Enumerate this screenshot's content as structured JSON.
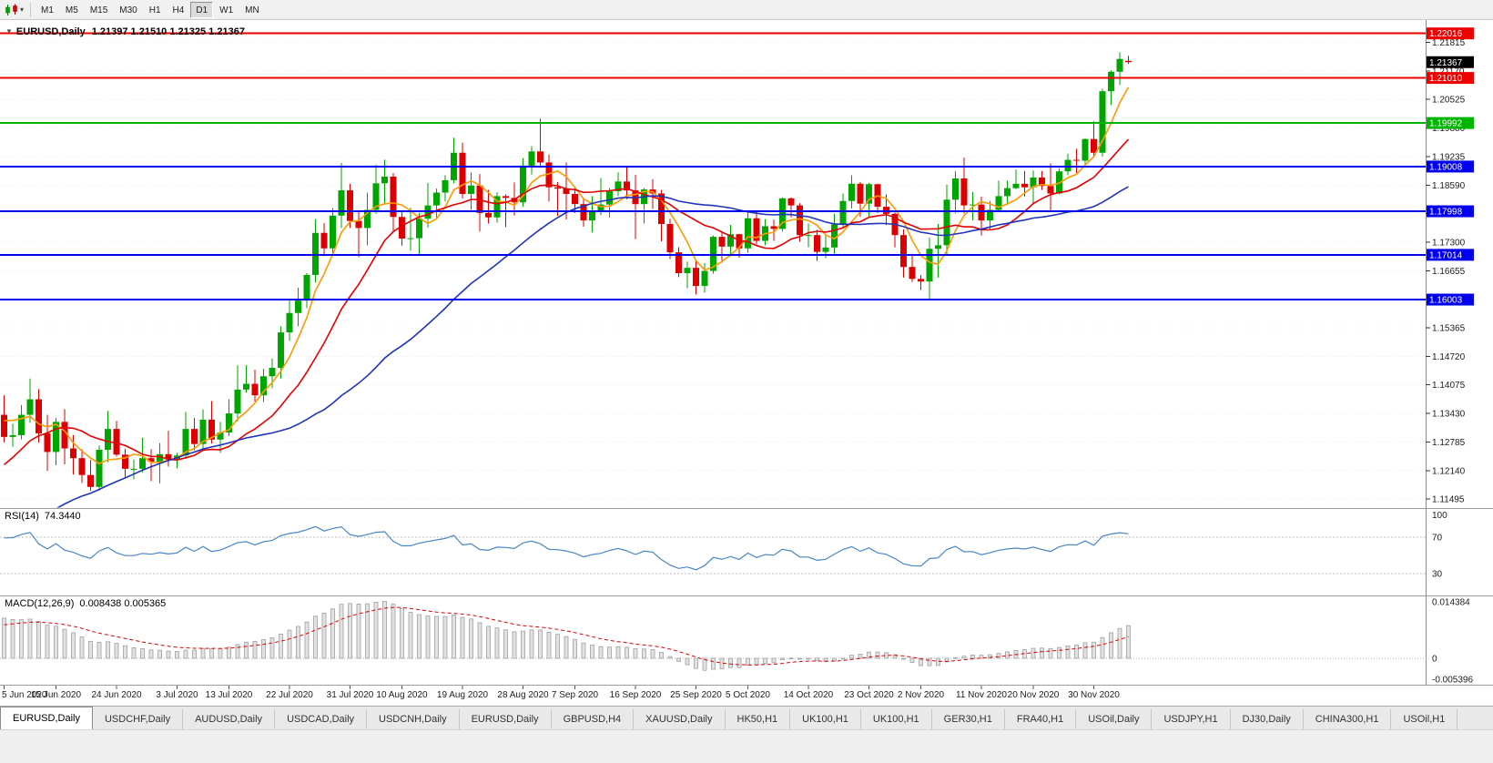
{
  "toolbar": {
    "dropdown_caret": "▾",
    "timeframes": [
      "M1",
      "M5",
      "M15",
      "M30",
      "H1",
      "H4",
      "D1",
      "W1",
      "MN"
    ],
    "active_timeframe": "D1"
  },
  "chart": {
    "collapse_arrow": "▼",
    "symbol": "EURUSD,Daily",
    "quote_ohlc": "1.21397 1.21510 1.21325 1.21367",
    "current_price": "1.21367",
    "up_color": "#00a600",
    "down_color": "#dd0000",
    "price_axis_ticks": [
      1.21815,
      1.2117,
      1.20525,
      1.1988,
      1.19235,
      1.1859,
      1.17945,
      1.173,
      1.16655,
      1.1601,
      1.15365,
      1.1472,
      1.14075,
      1.1343,
      1.12785,
      1.1214,
      1.11495
    ],
    "hlines": [
      {
        "price": 1.22016,
        "label": "1.22016",
        "color": "#ee0000"
      },
      {
        "price": 1.2101,
        "label": "1.21010",
        "color": "#ee0000"
      },
      {
        "price": 1.19992,
        "label": "1.19992",
        "color": "#00b400"
      },
      {
        "price": 1.19008,
        "label": "1.19008",
        "color": "#0000ee"
      },
      {
        "price": 1.17998,
        "label": "1.17998",
        "color": "#0000ee"
      },
      {
        "price": 1.17014,
        "label": "1.17014",
        "color": "#0000ee"
      },
      {
        "price": 1.16003,
        "label": "1.16003",
        "color": "#0000ee"
      }
    ],
    "date_labels": [
      {
        "text": "5 Jun 2020",
        "bar": 0
      },
      {
        "text": "15 Jun 2020",
        "bar": 6
      },
      {
        "text": "24 Jun 2020",
        "bar": 13
      },
      {
        "text": "3 Jul 2020",
        "bar": 20
      },
      {
        "text": "13 Jul 2020",
        "bar": 26
      },
      {
        "text": "22 Jul 2020",
        "bar": 33
      },
      {
        "text": "31 Jul 2020",
        "bar": 40
      },
      {
        "text": "10 Aug 2020",
        "bar": 46
      },
      {
        "text": "19 Aug 2020",
        "bar": 53
      },
      {
        "text": "28 Aug 2020",
        "bar": 60
      },
      {
        "text": "7 Sep 2020",
        "bar": 66
      },
      {
        "text": "16 Sep 2020",
        "bar": 73
      },
      {
        "text": "25 Sep 2020",
        "bar": 80
      },
      {
        "text": "5 Oct 2020",
        "bar": 86
      },
      {
        "text": "14 Oct 2020",
        "bar": 93
      },
      {
        "text": "23 Oct 2020",
        "bar": 100
      },
      {
        "text": "2 Nov 2020",
        "bar": 106
      },
      {
        "text": "11 Nov 2020",
        "bar": 113
      },
      {
        "text": "20 Nov 2020",
        "bar": 119
      },
      {
        "text": "30 Nov 2020",
        "bar": 126
      }
    ],
    "moving_averages": [
      {
        "period": 5,
        "color": "#ff9900"
      },
      {
        "period": 13,
        "color": "#e60000"
      },
      {
        "period": 34,
        "color": "#2233bb"
      }
    ],
    "ma_warmup_closes": [
      1.095,
      1.092,
      1.089,
      1.087,
      1.085,
      1.083,
      1.082,
      1.0845,
      1.086,
      1.088,
      1.0895,
      1.091,
      1.089,
      1.087,
      1.0855,
      1.084,
      1.086,
      1.0885,
      1.09,
      1.0915,
      1.093,
      1.095,
      1.097,
      1.099,
      1.0965,
      1.094,
      1.092,
      1.0945,
      1.097,
      1.0995,
      1.1015,
      1.104,
      1.106,
      1.108,
      1.11,
      1.1125,
      1.115,
      1.1175,
      1.12,
      1.123,
      1.126,
      1.129,
      1.132,
      1.135,
      1.1383
    ],
    "candles": [
      [
        1.134,
        1.1384,
        1.1278,
        1.129
      ],
      [
        1.129,
        1.132,
        1.1268,
        1.1294
      ],
      [
        1.1294,
        1.1362,
        1.1284,
        1.134
      ],
      [
        1.134,
        1.1422,
        1.1322,
        1.1375
      ],
      [
        1.1375,
        1.1398,
        1.1277,
        1.1298
      ],
      [
        1.1298,
        1.134,
        1.1213,
        1.1256
      ],
      [
        1.1256,
        1.1333,
        1.1226,
        1.1324
      ],
      [
        1.1324,
        1.1353,
        1.1228,
        1.1264
      ],
      [
        1.1264,
        1.1294,
        1.1205,
        1.1242
      ],
      [
        1.1242,
        1.1262,
        1.1186,
        1.1204
      ],
      [
        1.1204,
        1.1238,
        1.1168,
        1.1177
      ],
      [
        1.1177,
        1.1271,
        1.1168,
        1.1261
      ],
      [
        1.1261,
        1.1349,
        1.1233,
        1.1308
      ],
      [
        1.1308,
        1.1326,
        1.1246,
        1.125
      ],
      [
        1.125,
        1.1263,
        1.1199,
        1.1218
      ],
      [
        1.1218,
        1.1239,
        1.1194,
        1.1218
      ],
      [
        1.1218,
        1.1288,
        1.121,
        1.1242
      ],
      [
        1.1242,
        1.1262,
        1.119,
        1.1234
      ],
      [
        1.1234,
        1.1276,
        1.1185,
        1.1251
      ],
      [
        1.1251,
        1.1304,
        1.1223,
        1.1239
      ],
      [
        1.1239,
        1.1254,
        1.1219,
        1.1248
      ],
      [
        1.1248,
        1.1346,
        1.1241,
        1.1308
      ],
      [
        1.1308,
        1.1333,
        1.126,
        1.1274
      ],
      [
        1.1274,
        1.1352,
        1.1263,
        1.1329
      ],
      [
        1.1329,
        1.1371,
        1.1275,
        1.1284
      ],
      [
        1.1284,
        1.1324,
        1.1254,
        1.13
      ],
      [
        1.13,
        1.1375,
        1.1292,
        1.1343
      ],
      [
        1.1343,
        1.1452,
        1.1325,
        1.1397
      ],
      [
        1.1397,
        1.1452,
        1.139,
        1.141
      ],
      [
        1.141,
        1.1442,
        1.137,
        1.1384
      ],
      [
        1.1384,
        1.1444,
        1.1369,
        1.1427
      ],
      [
        1.1427,
        1.1467,
        1.14,
        1.1446
      ],
      [
        1.1446,
        1.154,
        1.1422,
        1.1526
      ],
      [
        1.1526,
        1.1601,
        1.1507,
        1.157
      ],
      [
        1.157,
        1.1627,
        1.154,
        1.1598
      ],
      [
        1.1598,
        1.166,
        1.1581,
        1.1656
      ],
      [
        1.1656,
        1.1782,
        1.1639,
        1.1751
      ],
      [
        1.1751,
        1.1773,
        1.17,
        1.1716
      ],
      [
        1.1716,
        1.1807,
        1.1702,
        1.179
      ],
      [
        1.179,
        1.1909,
        1.1762,
        1.1847
      ],
      [
        1.1847,
        1.1862,
        1.1762,
        1.1778
      ],
      [
        1.1778,
        1.1798,
        1.1696,
        1.1762
      ],
      [
        1.1762,
        1.1842,
        1.1723,
        1.1803
      ],
      [
        1.1803,
        1.1905,
        1.1794,
        1.1863
      ],
      [
        1.1863,
        1.1916,
        1.1817,
        1.1878
      ],
      [
        1.1878,
        1.1886,
        1.1754,
        1.1787
      ],
      [
        1.1787,
        1.1798,
        1.1722,
        1.1738
      ],
      [
        1.1738,
        1.1808,
        1.1711,
        1.1739
      ],
      [
        1.1739,
        1.1796,
        1.1701,
        1.1783
      ],
      [
        1.1783,
        1.1864,
        1.1763,
        1.1813
      ],
      [
        1.1813,
        1.1851,
        1.1782,
        1.1842
      ],
      [
        1.1842,
        1.1881,
        1.1822,
        1.187
      ],
      [
        1.187,
        1.1966,
        1.1863,
        1.1932
      ],
      [
        1.1932,
        1.1955,
        1.1829,
        1.1839
      ],
      [
        1.1839,
        1.1888,
        1.1803,
        1.1858
      ],
      [
        1.1858,
        1.1884,
        1.1754,
        1.1796
      ],
      [
        1.1796,
        1.1848,
        1.1772,
        1.1786
      ],
      [
        1.1786,
        1.1843,
        1.1774,
        1.1834
      ],
      [
        1.1834,
        1.1838,
        1.1764,
        1.183
      ],
      [
        1.183,
        1.1865,
        1.179,
        1.182
      ],
      [
        1.182,
        1.192,
        1.181,
        1.1903
      ],
      [
        1.1903,
        1.1947,
        1.1883,
        1.1935
      ],
      [
        1.1935,
        1.2009,
        1.1898,
        1.191
      ],
      [
        1.191,
        1.1928,
        1.1822,
        1.1854
      ],
      [
        1.1854,
        1.1866,
        1.1789,
        1.1851
      ],
      [
        1.1851,
        1.191,
        1.1781,
        1.1839
      ],
      [
        1.1839,
        1.1853,
        1.1796,
        1.1816
      ],
      [
        1.1816,
        1.1827,
        1.1765,
        1.1779
      ],
      [
        1.1779,
        1.1834,
        1.1752,
        1.1802
      ],
      [
        1.1802,
        1.1875,
        1.1791,
        1.1815
      ],
      [
        1.1815,
        1.1852,
        1.1786,
        1.1845
      ],
      [
        1.1845,
        1.1888,
        1.1834,
        1.1867
      ],
      [
        1.1867,
        1.19,
        1.1827,
        1.1847
      ],
      [
        1.1847,
        1.1882,
        1.1737,
        1.1816
      ],
      [
        1.1816,
        1.1852,
        1.1772,
        1.1849
      ],
      [
        1.1849,
        1.1872,
        1.1805,
        1.184
      ],
      [
        1.184,
        1.1848,
        1.1732,
        1.1771
      ],
      [
        1.1771,
        1.1783,
        1.1692,
        1.1707
      ],
      [
        1.1707,
        1.1719,
        1.1651,
        1.166
      ],
      [
        1.166,
        1.1686,
        1.1626,
        1.1672
      ],
      [
        1.1672,
        1.1687,
        1.1612,
        1.1631
      ],
      [
        1.1631,
        1.1683,
        1.1616,
        1.1665
      ],
      [
        1.1665,
        1.1745,
        1.1659,
        1.1742
      ],
      [
        1.1742,
        1.1755,
        1.1684,
        1.172
      ],
      [
        1.172,
        1.1769,
        1.1698,
        1.1748
      ],
      [
        1.1748,
        1.1749,
        1.1695,
        1.1716
      ],
      [
        1.1716,
        1.1798,
        1.1706,
        1.1784
      ],
      [
        1.1784,
        1.1799,
        1.1725,
        1.1733
      ],
      [
        1.1733,
        1.1782,
        1.1723,
        1.1766
      ],
      [
        1.1766,
        1.1781,
        1.1733,
        1.176
      ],
      [
        1.176,
        1.1831,
        1.1754,
        1.1829
      ],
      [
        1.1829,
        1.1831,
        1.1786,
        1.1813
      ],
      [
        1.1813,
        1.1818,
        1.1731,
        1.1746
      ],
      [
        1.1746,
        1.1772,
        1.1719,
        1.1746
      ],
      [
        1.1746,
        1.1758,
        1.1688,
        1.1708
      ],
      [
        1.1708,
        1.1746,
        1.1694,
        1.1718
      ],
      [
        1.1718,
        1.1794,
        1.1704,
        1.177
      ],
      [
        1.177,
        1.184,
        1.176,
        1.1823
      ],
      [
        1.1823,
        1.1881,
        1.1806,
        1.1862
      ],
      [
        1.1862,
        1.1866,
        1.1787,
        1.1817
      ],
      [
        1.1817,
        1.1864,
        1.1786,
        1.1861
      ],
      [
        1.1861,
        1.1862,
        1.1796,
        1.181
      ],
      [
        1.181,
        1.1838,
        1.1769,
        1.1794
      ],
      [
        1.1794,
        1.1797,
        1.1718,
        1.1746
      ],
      [
        1.1746,
        1.1759,
        1.165,
        1.1674
      ],
      [
        1.1674,
        1.1704,
        1.164,
        1.1647
      ],
      [
        1.1647,
        1.1656,
        1.1622,
        1.1641
      ],
      [
        1.1641,
        1.174,
        1.1603,
        1.1715
      ],
      [
        1.1715,
        1.1771,
        1.165,
        1.1723
      ],
      [
        1.1723,
        1.186,
        1.1702,
        1.1826
      ],
      [
        1.1826,
        1.189,
        1.1795,
        1.1874
      ],
      [
        1.1874,
        1.1921,
        1.1795,
        1.1813
      ],
      [
        1.1813,
        1.1843,
        1.1779,
        1.1815
      ],
      [
        1.1815,
        1.1833,
        1.1745,
        1.1779
      ],
      [
        1.1779,
        1.1823,
        1.1758,
        1.1803
      ],
      [
        1.1803,
        1.1869,
        1.1798,
        1.1834
      ],
      [
        1.1834,
        1.1869,
        1.1814,
        1.1852
      ],
      [
        1.1852,
        1.1894,
        1.185,
        1.1862
      ],
      [
        1.1862,
        1.1891,
        1.1833,
        1.1854
      ],
      [
        1.1854,
        1.1892,
        1.1816,
        1.1876
      ],
      [
        1.1876,
        1.1891,
        1.1848,
        1.1857
      ],
      [
        1.1857,
        1.1908,
        1.18,
        1.184
      ],
      [
        1.184,
        1.1897,
        1.1838,
        1.189
      ],
      [
        1.189,
        1.193,
        1.1881,
        1.1916
      ],
      [
        1.1916,
        1.1941,
        1.1886,
        1.1914
      ],
      [
        1.1914,
        1.1965,
        1.1901,
        1.1963
      ],
      [
        1.1963,
        1.2003,
        1.1924,
        1.1932
      ],
      [
        1.1932,
        1.2077,
        1.1923,
        1.2071
      ],
      [
        1.2071,
        1.2118,
        1.204,
        1.2115
      ],
      [
        1.2115,
        1.2159,
        1.2085,
        1.2144
      ],
      [
        1.21397,
        1.2151,
        1.21325,
        1.21367
      ]
    ]
  },
  "rsi": {
    "name": "RSI(14)",
    "value": "74.3440",
    "period": 14,
    "axis": [
      "100",
      "70",
      "30"
    ],
    "levels": [
      70,
      30
    ],
    "color": "#4a86c8"
  },
  "macd": {
    "name": "MACD(12,26,9)",
    "values": "0.008438 0.005365",
    "fast": 12,
    "slow": 26,
    "signal": 9,
    "axis_max": "0.014384",
    "axis_zero": "0",
    "axis_min": "-0.005396"
  },
  "tabs": [
    "EURUSD,Daily",
    "USDCHF,Daily",
    "AUDUSD,Daily",
    "USDCAD,Daily",
    "USDCNH,Daily",
    "EURUSD,Daily",
    "GBPUSD,H4",
    "XAUUSD,Daily",
    "HK50,H1",
    "UK100,H1",
    "UK100,H1",
    "GER30,H1",
    "FRA40,H1",
    "USOil,Daily",
    "USDJPY,H1",
    "DJ30,Daily",
    "CHINA300,H1",
    "USOil,H1"
  ],
  "active_tab": 0
}
